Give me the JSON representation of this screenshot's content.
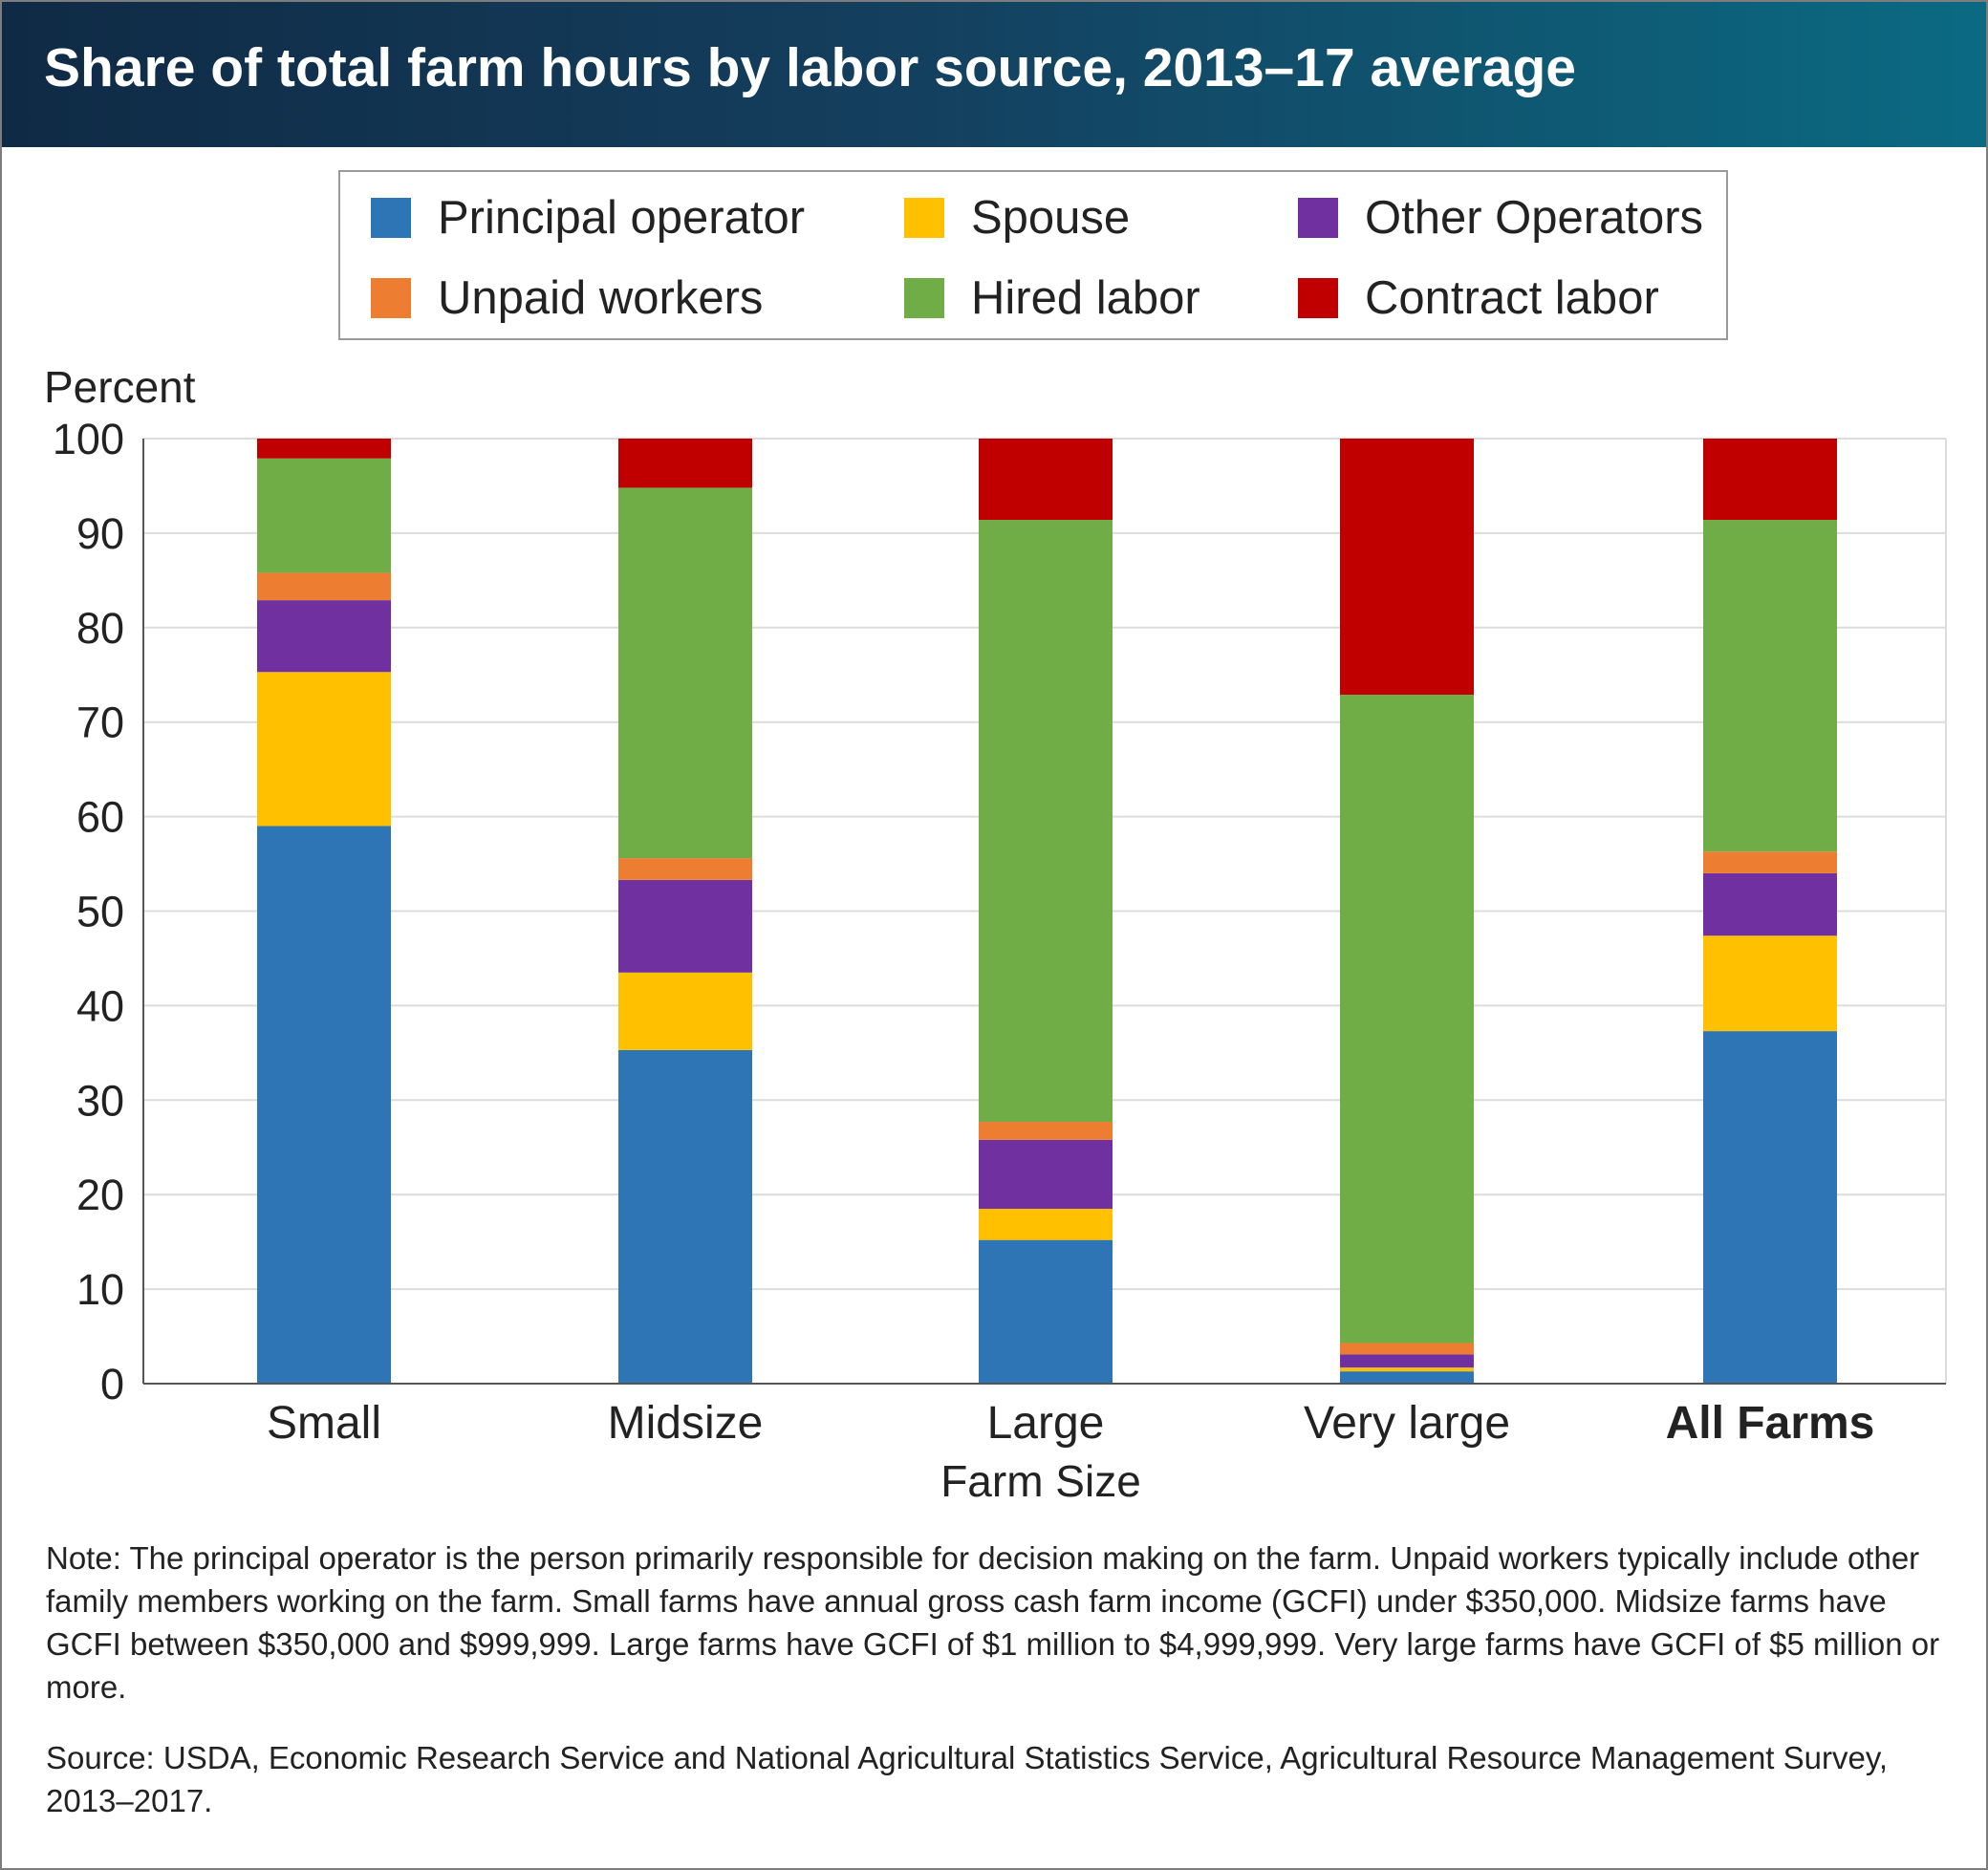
{
  "title": "Share of total farm hours by labor source, 2013–17 average",
  "note": "Note: The principal operator is the person primarily responsible for decision making on the farm. Unpaid workers typically include other family members working on the farm. Small farms have annual gross cash farm income (GCFI) under $350,000. Midsize farms have GCFI between $350,000 and $999,999. Large farms have GCFI of $1 million to $4,999,999. Very large farms have GCFI of $5 million or more.",
  "source": "Source: USDA, Economic Research Service and National Agricultural Statistics Service, Agricultural Resource Management Survey, 2013–2017.",
  "chart_data": {
    "type": "bar",
    "stacked": true,
    "title": "Share of total farm hours by labor source, 2013–17 average",
    "xlabel": "Farm Size",
    "ylabel": "Percent",
    "ylim": [
      0,
      100
    ],
    "yticks": [
      0,
      10,
      20,
      30,
      40,
      50,
      60,
      70,
      80,
      90,
      100
    ],
    "grid": true,
    "legend_position": "top",
    "categories": [
      "Small",
      "Midsize",
      "Large",
      "Very large",
      "All Farms"
    ],
    "bold_categories": [
      "All Farms"
    ],
    "series": [
      {
        "name": "Principal operator",
        "color": "#2e75b6",
        "values": [
          59,
          35.3,
          15.2,
          1.3,
          37.3
        ]
      },
      {
        "name": "Spouse",
        "color": "#ffc000",
        "values": [
          16.3,
          8.2,
          3.3,
          0.4,
          10.1
        ]
      },
      {
        "name": "Other Operators",
        "color": "#7030a0",
        "values": [
          7.6,
          9.8,
          7.3,
          1.4,
          6.6
        ]
      },
      {
        "name": "Unpaid workers",
        "color": "#ed7d31",
        "values": [
          2.9,
          2.3,
          1.9,
          1.2,
          2.3
        ]
      },
      {
        "name": "Hired labor",
        "color": "#70ad47",
        "values": [
          12.1,
          39.2,
          63.7,
          68.6,
          35.1
        ]
      },
      {
        "name": "Contract labor",
        "color": "#c00000",
        "values": [
          2.1,
          5.2,
          8.6,
          27.1,
          8.6
        ]
      }
    ]
  }
}
